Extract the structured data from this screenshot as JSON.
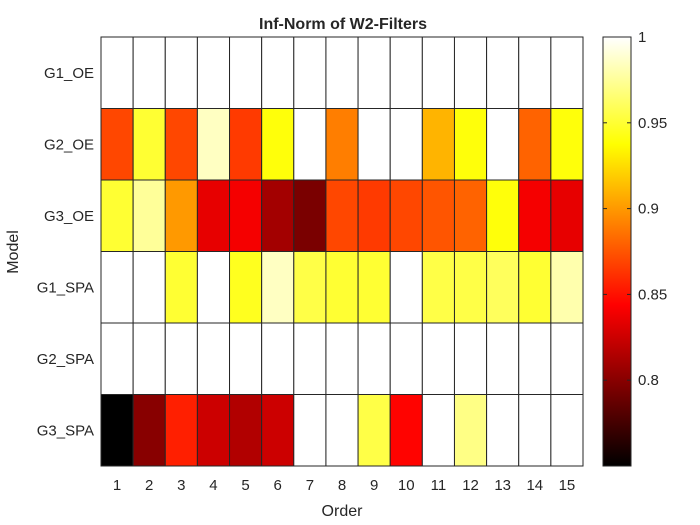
{
  "chart_data": {
    "type": "heatmap",
    "title": "Inf-Norm of W2-Filters",
    "xlabel": "Order",
    "ylabel": "Model",
    "x_categories": [
      "1",
      "2",
      "3",
      "4",
      "5",
      "6",
      "7",
      "8",
      "9",
      "10",
      "11",
      "12",
      "13",
      "14",
      "15"
    ],
    "y_categories": [
      "G1_OE",
      "G2_OE",
      "G3_OE",
      "G1_SPA",
      "G2_SPA",
      "G3_SPA"
    ],
    "values": [
      [
        1.0,
        1.0,
        1.0,
        1.0,
        1.0,
        1.0,
        1.0,
        1.0,
        1.0,
        1.0,
        1.0,
        1.0,
        1.0,
        1.0,
        1.0
      ],
      [
        0.87,
        0.95,
        0.87,
        0.985,
        0.865,
        0.94,
        1.0,
        0.89,
        1.0,
        1.0,
        0.91,
        0.94,
        1.0,
        0.88,
        0.94
      ],
      [
        0.95,
        0.975,
        0.9,
        0.835,
        0.84,
        0.81,
        0.795,
        0.87,
        0.865,
        0.87,
        0.875,
        0.88,
        0.94,
        0.84,
        0.835
      ],
      [
        1.0,
        1.0,
        0.95,
        1.0,
        0.945,
        0.985,
        0.955,
        0.95,
        0.95,
        1.0,
        0.955,
        0.955,
        0.96,
        0.95,
        0.98
      ],
      [
        1.0,
        1.0,
        1.0,
        1.0,
        1.0,
        1.0,
        1.0,
        1.0,
        1.0,
        1.0,
        1.0,
        1.0,
        1.0,
        1.0,
        1.0
      ],
      [
        0.75,
        0.8,
        0.855,
        0.825,
        0.815,
        0.825,
        1.0,
        1.0,
        0.955,
        0.845,
        1.0,
        0.97,
        1.0,
        1.0,
        1.0
      ]
    ],
    "colormap": "hot",
    "color_limits": [
      0.75,
      1.0
    ],
    "colorbar_ticks": [
      0.8,
      0.85,
      0.9,
      0.95,
      1
    ],
    "colorbar_tick_labels": [
      "0.8",
      "0.85",
      "0.9",
      "0.95",
      "1"
    ],
    "grid": true,
    "colorbar_position": "right"
  }
}
